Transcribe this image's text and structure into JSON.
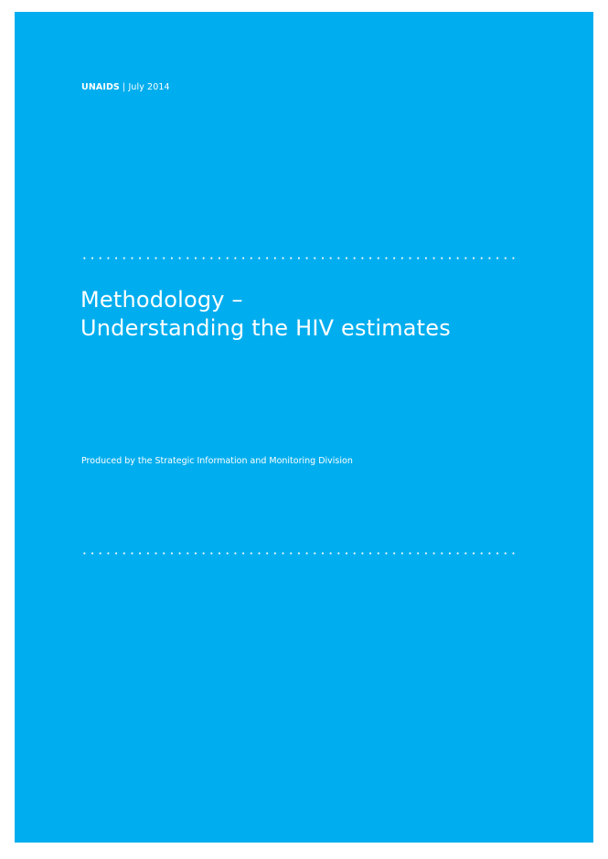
{
  "brand_color": "#00aeef",
  "header": {
    "org": "UNAIDS",
    "separator": "|",
    "date": "July 2014"
  },
  "title": {
    "line1": "Methodology –",
    "line2": "Understanding the HIV estimates"
  },
  "subtitle": "Produced by the Strategic Information and Monitoring Division"
}
